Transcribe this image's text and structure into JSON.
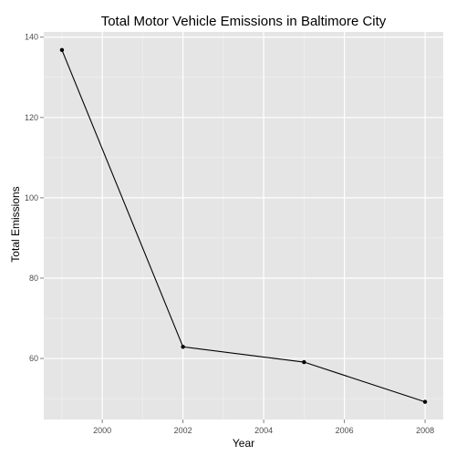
{
  "chart_data": {
    "type": "line",
    "title": "Total Motor Vehicle Emissions in Baltimore City",
    "xlabel": "Year",
    "ylabel": "Total Emissions",
    "x": [
      1999,
      2002,
      2005,
      2008
    ],
    "series": [
      {
        "values": [
          136.8,
          62.9,
          59.1,
          49.2
        ]
      }
    ],
    "xlim": [
      1998.55,
      2008.45
    ],
    "ylim": [
      44.8,
      141.3
    ],
    "x_ticks": [
      2000,
      2002,
      2004,
      2006,
      2008
    ],
    "y_ticks": [
      60,
      80,
      100,
      120,
      140
    ],
    "grid": true,
    "legend": "none",
    "colors": {
      "panel_background": "#e5e5e5",
      "major_grid": "#ffffff",
      "minor_grid": "#f2f2f2",
      "line": "#000000",
      "point": "#000000",
      "tick_label": "#4d4d4d"
    }
  }
}
